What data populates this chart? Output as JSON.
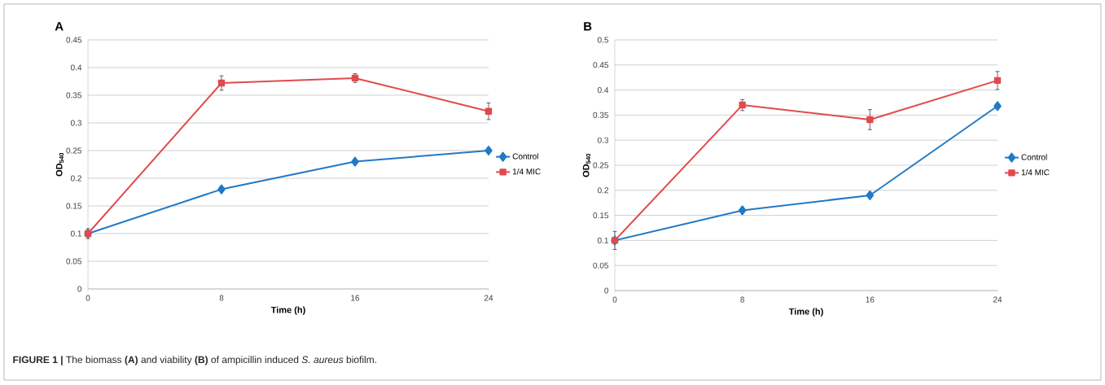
{
  "chart_data": [
    {
      "type": "line",
      "title": "A",
      "xlabel": "Time (h)",
      "ylabel": "OD$_{540}$",
      "x": [
        0,
        8,
        16,
        24
      ],
      "series": [
        {
          "name": "Control",
          "color": "#2279c4",
          "marker": "diamond",
          "values": [
            0.1,
            0.18,
            0.23,
            0.25
          ]
        },
        {
          "name": "1/4 MIC",
          "color": "#e04a4c",
          "marker": "square",
          "values": [
            0.1,
            0.372,
            0.381,
            0.321
          ],
          "errors": [
            0.009,
            0.013,
            0.008,
            0.015
          ]
        }
      ],
      "xlim": [
        0,
        24
      ],
      "xticks": [
        0,
        8,
        16,
        24
      ],
      "ylim": [
        0,
        0.45
      ],
      "yticks": [
        0,
        0.05,
        0.1,
        0.15,
        0.2,
        0.25,
        0.3,
        0.35,
        0.4,
        0.45
      ],
      "grid": "y",
      "legend": "right",
      "line_style": "solid",
      "annotations": [
        "**FIGURE 1 |** The biomass **(A)** and viability **(B)** of ampicillin induced *S. aureus* biofilm."
      ]
    },
    {
      "type": "line",
      "title": "B",
      "xlabel": "Time (h)",
      "ylabel": "OD$_{540}$",
      "x": [
        0,
        8,
        16,
        24
      ],
      "series": [
        {
          "name": "Control",
          "color": "#2279c4",
          "marker": "diamond",
          "values": [
            0.1,
            0.16,
            0.19,
            0.368
          ]
        },
        {
          "name": "1/4 MIC",
          "color": "#e04a4c",
          "marker": "square",
          "values": [
            0.1,
            0.37,
            0.341,
            0.419
          ],
          "errors": [
            0.018,
            0.011,
            0.02,
            0.018
          ]
        }
      ],
      "xlim": [
        0,
        24
      ],
      "xticks": [
        0,
        8,
        16,
        24
      ],
      "ylim": [
        0,
        0.5
      ],
      "yticks": [
        0,
        0.05,
        0.1,
        0.15,
        0.2,
        0.25,
        0.3,
        0.35,
        0.4,
        0.45,
        0.5
      ],
      "grid": "y",
      "legend": "right",
      "line_style": "solid"
    }
  ]
}
